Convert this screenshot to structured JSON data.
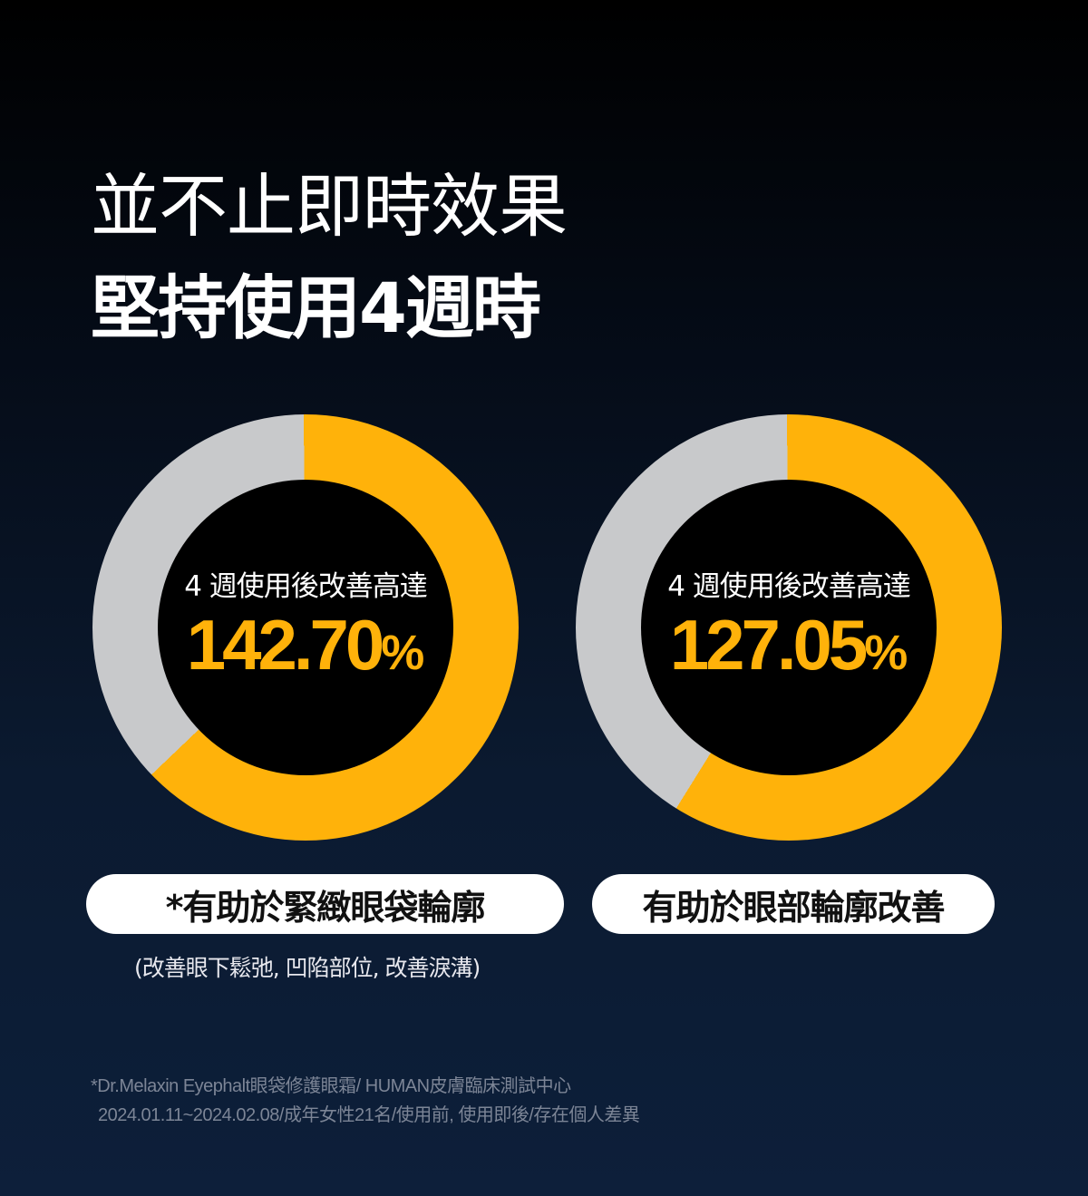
{
  "headline": {
    "line1": "並不止即時效果",
    "line2": "堅持使用4週時"
  },
  "colors": {
    "accent": "#ffb20a",
    "track": "#c8c9cb",
    "hole": "#000000"
  },
  "stats": [
    {
      "caption": "4 週使用後改善高達",
      "value": "142.70",
      "unit": "%",
      "fill_fraction": 0.63,
      "label": "*有助於緊緻眼袋輪廓"
    },
    {
      "caption": "4 週使用後改善高達",
      "value": "127.05",
      "unit": "%",
      "fill_fraction": 0.59,
      "label": "有助於眼部輪廓改善"
    }
  ],
  "sub_note": "(改善眼下鬆弛, 凹陷部位, 改善淚溝)",
  "footnote": {
    "line1": "*Dr.Melaxin Eyephalt眼袋修護眼霜/ HUMAN皮膚臨床測試中心",
    "line2": "2024.01.11~2024.02.08/成年女性21名/使用前, 使用即後/存在個人差異"
  }
}
